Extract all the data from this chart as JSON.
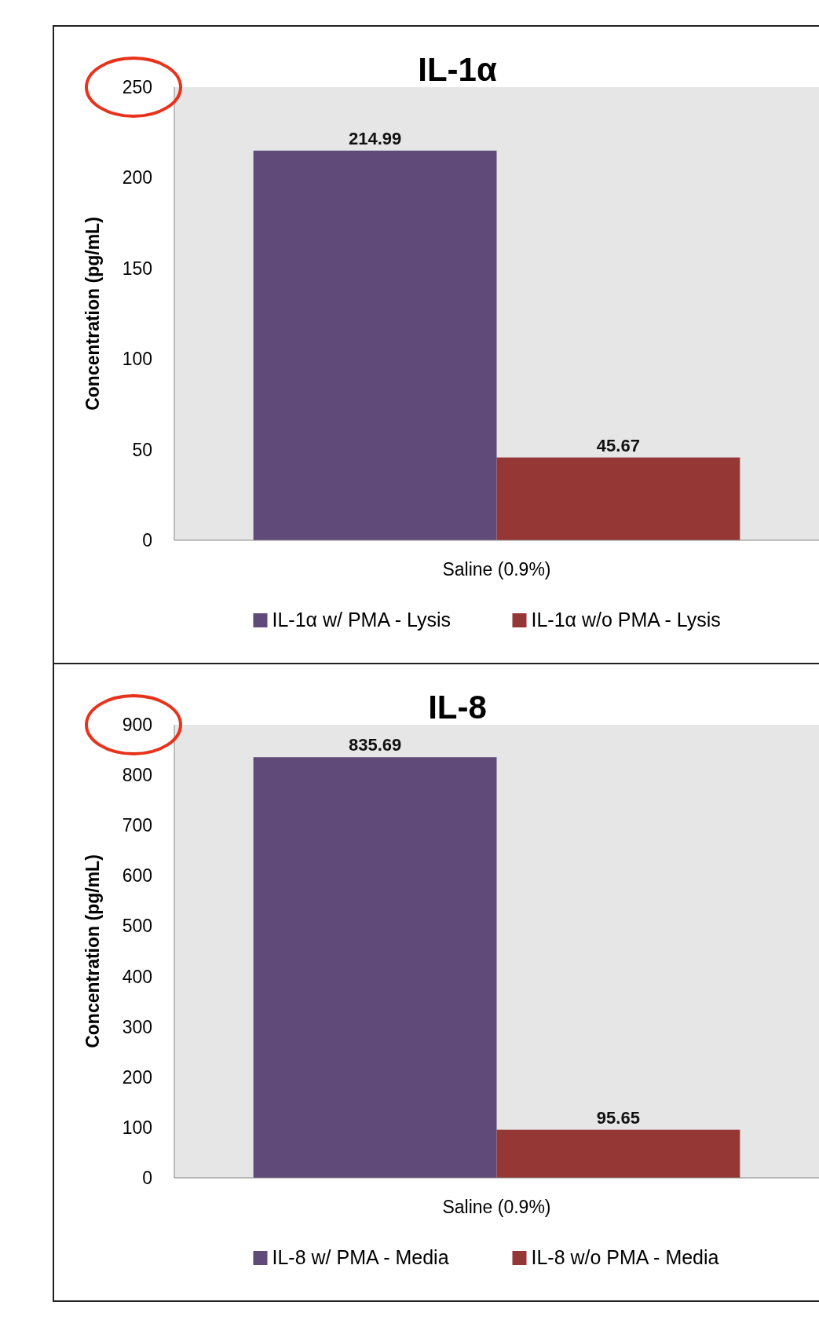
{
  "chart_data": [
    {
      "type": "bar",
      "title": "IL-1α",
      "ylabel": "Concentration (pg/mL)",
      "categories": [
        "Saline (0.9%)"
      ],
      "series": [
        {
          "name": "IL-1α w/ PMA - Lysis",
          "color": "#5f4a7a",
          "values": [
            214.99
          ]
        },
        {
          "name": "IL-1α w/o PMA - Lysis",
          "color": "#953735",
          "values": [
            45.67
          ]
        }
      ],
      "ylim": [
        0,
        250
      ],
      "yticks": [
        0,
        50,
        100,
        150,
        200,
        250
      ],
      "grid": false,
      "legend": "bottom",
      "data_labels": true
    },
    {
      "type": "bar",
      "title": "IL-8",
      "ylabel": "Concentration (pg/mL)",
      "categories": [
        "Saline (0.9%)"
      ],
      "series": [
        {
          "name": "IL-8 w/ PMA - Media",
          "color": "#5f4a7a",
          "values": [
            835.69
          ]
        },
        {
          "name": "IL-8 w/o PMA - Media",
          "color": "#953735",
          "values": [
            95.65
          ]
        }
      ],
      "ylim": [
        0,
        900
      ],
      "yticks": [
        0,
        100,
        200,
        300,
        400,
        500,
        600,
        700,
        800,
        900
      ],
      "grid": false,
      "legend": "bottom",
      "data_labels": true
    }
  ]
}
